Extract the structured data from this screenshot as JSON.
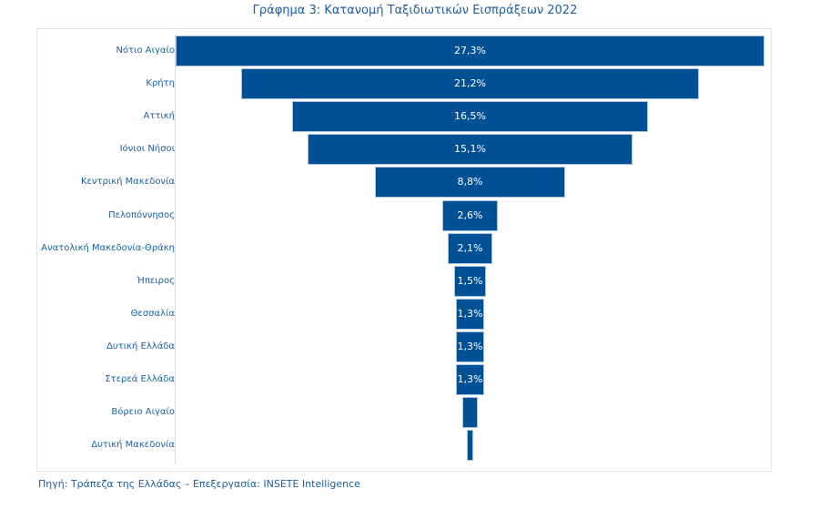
{
  "chart_data": {
    "type": "bar",
    "subtype": "funnel",
    "title": "Γράφημα 3: Κατανομή Ταξιδιωτικών Εισπράξεων 2022",
    "source": "Πηγή: Τράπεζα της Ελλάδας – Επεξεργασία: INSETE Intelligence",
    "categories": [
      "Νότιο Αιγαίο",
      "Κρήτη",
      "Αττική",
      "Ιόνιοι Νήσοι",
      "Κεντρική Μακεδονία",
      "Πελοπόννησος",
      "Ανατολική Μακεδονία-Θράκη",
      "Ήπειρος",
      "Θεσσαλία",
      "Δυτική Ελλάδα",
      "Στερεά Ελλάδα",
      "Βόρειο Αιγαίο",
      "Δυτική Μακεδονία"
    ],
    "values": [
      27.3,
      21.2,
      16.5,
      15.1,
      8.8,
      2.6,
      2.1,
      1.5,
      1.3,
      1.3,
      1.3,
      0.7,
      0.3
    ],
    "data_labels": [
      "27,3%",
      "21,2%",
      "16,5%",
      "15,1%",
      "8,8%",
      "2,6%",
      "2,1%",
      "1,5%",
      "1,3%",
      "1,3%",
      "1,3%",
      "",
      ""
    ],
    "unit": "%",
    "bar_color": "#005096",
    "text_color": "#1f5fa0",
    "xlim": [
      0,
      27.3
    ],
    "grid": false,
    "legend": "none"
  }
}
